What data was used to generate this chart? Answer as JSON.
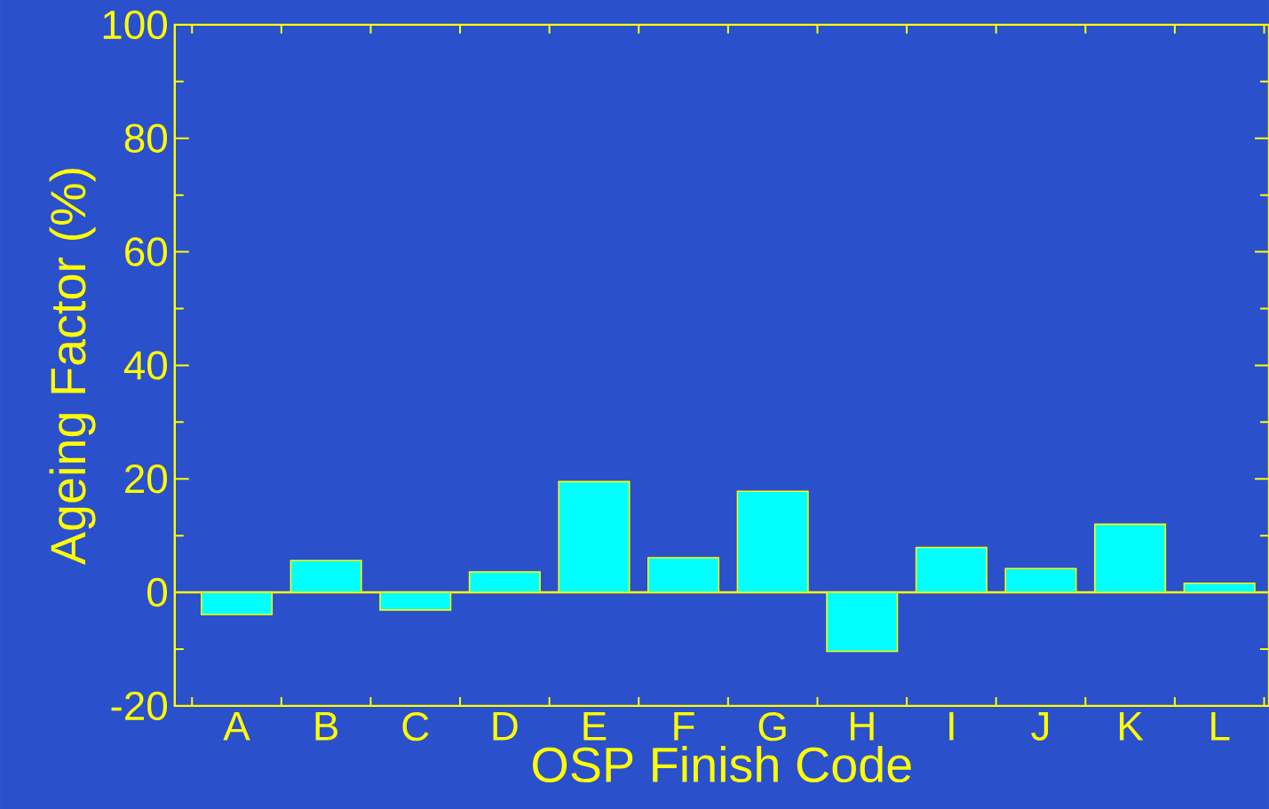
{
  "chart_data": {
    "type": "bar",
    "xlabel": "OSP Finish Code",
    "ylabel": "Ageing Factor (%)",
    "categories": [
      "A",
      "B",
      "C",
      "D",
      "E",
      "F",
      "G",
      "H",
      "I",
      "J",
      "K",
      "L"
    ],
    "values": [
      -3.9,
      5.6,
      -3.1,
      3.6,
      19.5,
      6.1,
      17.8,
      -10.4,
      7.9,
      4.2,
      12.0,
      1.6
    ],
    "color": "#00ffff",
    "ylim": [
      -20,
      100
    ],
    "yticks": [
      -20,
      0,
      20,
      40,
      60,
      80,
      100
    ],
    "ref_lines": [
      {
        "axis": "y",
        "value": 0,
        "color": "#ffff00"
      }
    ]
  }
}
